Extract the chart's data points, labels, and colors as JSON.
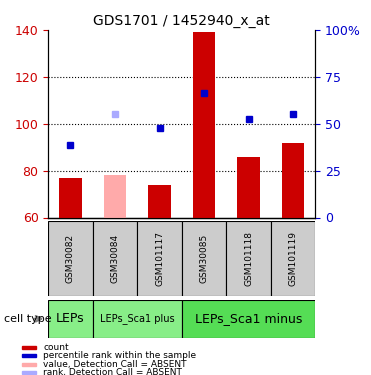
{
  "title": "GDS1701 / 1452940_x_at",
  "samples": [
    "GSM30082",
    "GSM30084",
    "GSM101117",
    "GSM30085",
    "GSM101118",
    "GSM101119"
  ],
  "bar_values": [
    77,
    78,
    74,
    139,
    86,
    92
  ],
  "bar_colors": [
    "#cc0000",
    "#ffaaaa",
    "#cc0000",
    "#cc0000",
    "#cc0000",
    "#cc0000"
  ],
  "dot_values": [
    91,
    104,
    98,
    113,
    102,
    104
  ],
  "dot_colors": [
    "#0000cc",
    "#aaaaff",
    "#0000cc",
    "#0000cc",
    "#0000cc",
    "#0000cc"
  ],
  "ylim_left": [
    60,
    140
  ],
  "ylim_right": [
    0,
    100
  ],
  "right_ticks": [
    0,
    25,
    50,
    75,
    100
  ],
  "right_tick_labels": [
    "0",
    "25",
    "50",
    "75",
    "100%"
  ],
  "left_ticks": [
    60,
    80,
    100,
    120,
    140
  ],
  "dotted_lines": [
    80,
    100,
    120
  ],
  "cell_type_label": "cell type",
  "cell_groups": [
    {
      "label": "LEPs",
      "start": 0,
      "end": 1,
      "color": "#88ee88"
    },
    {
      "label": "LEPs_Sca1 plus",
      "start": 1,
      "end": 3,
      "color": "#88ee88"
    },
    {
      "label": "LEPs_Sca1 minus",
      "start": 3,
      "end": 6,
      "color": "#44dd44"
    }
  ],
  "legend_items": [
    {
      "color": "#cc0000",
      "label": "count"
    },
    {
      "color": "#0000cc",
      "label": "percentile rank within the sample"
    },
    {
      "color": "#ffaaaa",
      "label": "value, Detection Call = ABSENT"
    },
    {
      "color": "#aaaaff",
      "label": "rank, Detection Call = ABSENT"
    }
  ],
  "xlabel_color": "#888888",
  "bar_bottom": 60,
  "plot_bg": "#ffffff",
  "grid_color": "#000000",
  "tick_label_color_left": "#cc0000",
  "tick_label_color_right": "#0000cc"
}
